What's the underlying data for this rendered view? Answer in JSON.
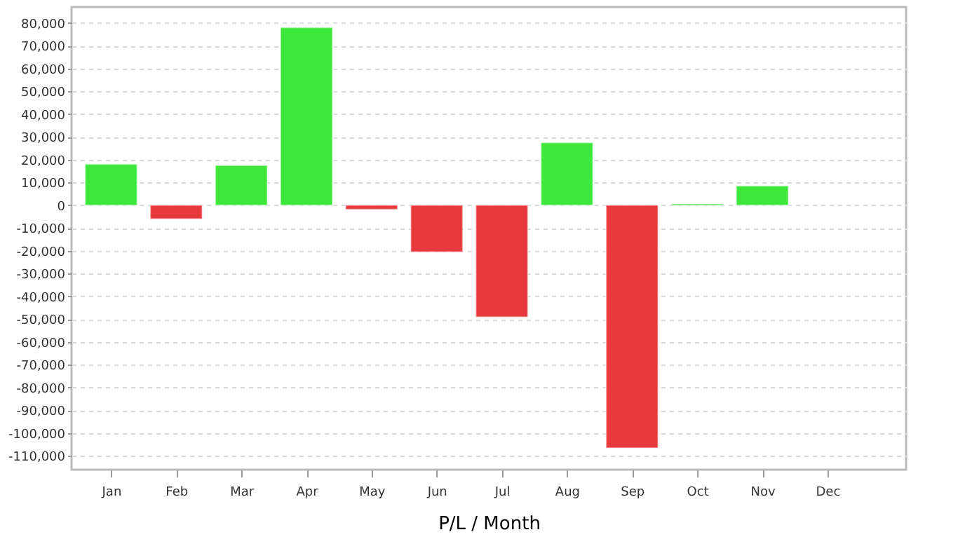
{
  "chart_data": {
    "type": "bar",
    "xlabel": "P/L / Month",
    "categories": [
      "Jan",
      "Feb",
      "Mar",
      "Apr",
      "May",
      "Jun",
      "Jul",
      "Aug",
      "Sep",
      "Oct",
      "Nov",
      "Dec"
    ],
    "values": [
      18000,
      -6000,
      17500,
      78000,
      -1800,
      -20500,
      -49000,
      27500,
      -106500,
      600,
      8500,
      null
    ],
    "colors": [
      "#3de83a",
      "#e8393c",
      "#3de83a",
      "#3de83a",
      "#e8393c",
      "#e8393c",
      "#e8393c",
      "#3de83a",
      "#e8393c",
      "#3de83a",
      "#3de83a",
      null
    ],
    "ylim": [
      -116000,
      87000
    ],
    "yticks": [
      {
        "value": -110000,
        "label": "-110,000"
      },
      {
        "value": -100000,
        "label": "-100,000"
      },
      {
        "value": -90000,
        "label": "-90,000"
      },
      {
        "value": -80000,
        "label": "-80,000"
      },
      {
        "value": -70000,
        "label": "-70,000"
      },
      {
        "value": -60000,
        "label": "-60,000"
      },
      {
        "value": -50000,
        "label": "-50,000"
      },
      {
        "value": -40000,
        "label": "-40,000"
      },
      {
        "value": -30000,
        "label": "-30,000"
      },
      {
        "value": -20000,
        "label": "-20,000"
      },
      {
        "value": -10000,
        "label": "-10,000"
      },
      0,
      {
        "value": 10000,
        "label": "10,000"
      },
      {
        "value": 20000,
        "label": "20,000"
      },
      {
        "value": 30000,
        "label": "30,000"
      },
      {
        "value": 40000,
        "label": "40,000"
      },
      {
        "value": 50000,
        "label": "50,000"
      },
      {
        "value": 60000,
        "label": "60,000"
      },
      {
        "value": 70000,
        "label": "70,000"
      },
      {
        "value": 80000,
        "label": "80,000"
      }
    ],
    "grid": "y"
  }
}
